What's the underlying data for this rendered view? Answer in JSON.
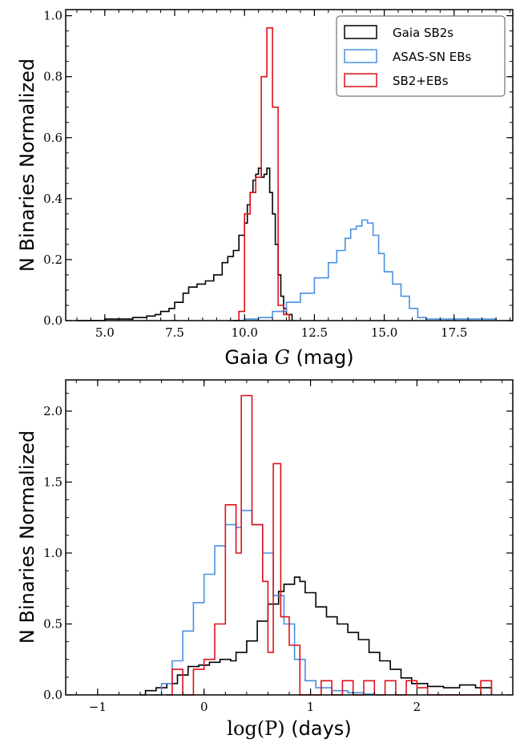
{
  "chart_data": [
    {
      "type": "histogram-step",
      "xlabel": "Gaia G (mag)",
      "xlabel_parts": {
        "pre": "Gaia ",
        "math": "G",
        "post": " (mag)"
      },
      "ylabel": "N Binaries Normalized",
      "xlim": [
        3.6,
        19.6
      ],
      "ylim": [
        0,
        1.02
      ],
      "xticks": [
        5.0,
        7.5,
        10.0,
        12.5,
        15.0,
        17.5
      ],
      "xtick_labels": [
        "5.0",
        "7.5",
        "10.0",
        "12.5",
        "15.0",
        "17.5"
      ],
      "yticks": [
        0.0,
        0.2,
        0.4,
        0.6,
        0.8,
        1.0
      ],
      "ytick_labels": [
        "0.0",
        "0.2",
        "0.4",
        "0.6",
        "0.8",
        "1.0"
      ],
      "legend": {
        "position": "top-right"
      },
      "series": [
        {
          "name": "Gaia SB2s",
          "color": "#000000",
          "points": [
            [
              4.0,
              0.0
            ],
            [
              5.0,
              0.005
            ],
            [
              6.0,
              0.01
            ],
            [
              6.5,
              0.015
            ],
            [
              6.8,
              0.02
            ],
            [
              7.0,
              0.03
            ],
            [
              7.3,
              0.04
            ],
            [
              7.5,
              0.06
            ],
            [
              7.8,
              0.09
            ],
            [
              8.0,
              0.11
            ],
            [
              8.3,
              0.12
            ],
            [
              8.6,
              0.13
            ],
            [
              8.9,
              0.15
            ],
            [
              9.2,
              0.19
            ],
            [
              9.4,
              0.21
            ],
            [
              9.6,
              0.23
            ],
            [
              9.8,
              0.28
            ],
            [
              10.0,
              0.32
            ],
            [
              10.1,
              0.38
            ],
            [
              10.2,
              0.42
            ],
            [
              10.3,
              0.46
            ],
            [
              10.4,
              0.48
            ],
            [
              10.5,
              0.5
            ],
            [
              10.6,
              0.47
            ],
            [
              10.7,
              0.48
            ],
            [
              10.8,
              0.5
            ],
            [
              10.9,
              0.42
            ],
            [
              11.0,
              0.35
            ],
            [
              11.1,
              0.25
            ],
            [
              11.2,
              0.15
            ],
            [
              11.3,
              0.08
            ],
            [
              11.4,
              0.04
            ],
            [
              11.5,
              0.02
            ],
            [
              11.7,
              0.0
            ]
          ]
        },
        {
          "name": "ASAS-SN EBs",
          "color": "#4a90e2",
          "points": [
            [
              9.5,
              0.0
            ],
            [
              10.0,
              0.005
            ],
            [
              10.5,
              0.01
            ],
            [
              11.0,
              0.03
            ],
            [
              11.5,
              0.06
            ],
            [
              12.0,
              0.09
            ],
            [
              12.5,
              0.14
            ],
            [
              13.0,
              0.19
            ],
            [
              13.3,
              0.23
            ],
            [
              13.6,
              0.27
            ],
            [
              13.8,
              0.3
            ],
            [
              14.0,
              0.31
            ],
            [
              14.2,
              0.33
            ],
            [
              14.4,
              0.32
            ],
            [
              14.6,
              0.28
            ],
            [
              14.8,
              0.22
            ],
            [
              15.0,
              0.16
            ],
            [
              15.3,
              0.12
            ],
            [
              15.6,
              0.08
            ],
            [
              15.9,
              0.04
            ],
            [
              16.2,
              0.01
            ],
            [
              16.5,
              0.005
            ],
            [
              19.0,
              0.005
            ],
            [
              19.0,
              0.0
            ]
          ]
        },
        {
          "name": "SB2+EBs",
          "color": "#e0101a",
          "points": [
            [
              9.6,
              0.0
            ],
            [
              9.8,
              0.03
            ],
            [
              10.0,
              0.35
            ],
            [
              10.2,
              0.42
            ],
            [
              10.4,
              0.47
            ],
            [
              10.6,
              0.8
            ],
            [
              10.8,
              0.96
            ],
            [
              11.0,
              0.7
            ],
            [
              11.2,
              0.05
            ],
            [
              11.4,
              0.02
            ],
            [
              11.6,
              0.0
            ]
          ]
        }
      ]
    },
    {
      "type": "histogram-step",
      "xlabel": "log(P) (days)",
      "xlabel_parts": {
        "pre": "",
        "math": "log(P)",
        "post": " (days)"
      },
      "ylabel": "N Binaries Normalized",
      "xlim": [
        -1.3,
        2.9
      ],
      "ylim": [
        0,
        2.22
      ],
      "xticks": [
        -1,
        0,
        1,
        2
      ],
      "xtick_labels": [
        "−1",
        "0",
        "1",
        "2"
      ],
      "yticks": [
        0.0,
        0.5,
        1.0,
        1.5,
        2.0
      ],
      "ytick_labels": [
        "0.0",
        "0.5",
        "1.0",
        "1.5",
        "2.0"
      ],
      "series": [
        {
          "name": "Gaia SB2s",
          "color": "#000000",
          "points": [
            [
              -0.6,
              0.0
            ],
            [
              -0.55,
              0.03
            ],
            [
              -0.45,
              0.05
            ],
            [
              -0.35,
              0.08
            ],
            [
              -0.25,
              0.14
            ],
            [
              -0.15,
              0.2
            ],
            [
              -0.05,
              0.21
            ],
            [
              0.05,
              0.23
            ],
            [
              0.15,
              0.25
            ],
            [
              0.25,
              0.24
            ],
            [
              0.3,
              0.3
            ],
            [
              0.4,
              0.38
            ],
            [
              0.5,
              0.52
            ],
            [
              0.6,
              0.64
            ],
            [
              0.7,
              0.73
            ],
            [
              0.75,
              0.78
            ],
            [
              0.85,
              0.83
            ],
            [
              0.9,
              0.8
            ],
            [
              0.95,
              0.72
            ],
            [
              1.05,
              0.62
            ],
            [
              1.15,
              0.55
            ],
            [
              1.25,
              0.5
            ],
            [
              1.35,
              0.44
            ],
            [
              1.45,
              0.39
            ],
            [
              1.55,
              0.3
            ],
            [
              1.65,
              0.24
            ],
            [
              1.75,
              0.18
            ],
            [
              1.85,
              0.12
            ],
            [
              1.95,
              0.08
            ],
            [
              2.1,
              0.06
            ],
            [
              2.25,
              0.05
            ],
            [
              2.4,
              0.07
            ],
            [
              2.55,
              0.05
            ],
            [
              2.7,
              0.0
            ]
          ]
        },
        {
          "name": "ASAS-SN EBs",
          "color": "#4a90e2",
          "points": [
            [
              -0.5,
              0.0
            ],
            [
              -0.4,
              0.08
            ],
            [
              -0.3,
              0.24
            ],
            [
              -0.2,
              0.45
            ],
            [
              -0.1,
              0.65
            ],
            [
              0.0,
              0.85
            ],
            [
              0.1,
              1.05
            ],
            [
              0.2,
              1.2
            ],
            [
              0.3,
              1.18
            ],
            [
              0.35,
              1.3
            ],
            [
              0.45,
              1.2
            ],
            [
              0.55,
              1.0
            ],
            [
              0.65,
              0.7
            ],
            [
              0.75,
              0.5
            ],
            [
              0.85,
              0.25
            ],
            [
              0.95,
              0.1
            ],
            [
              1.05,
              0.05
            ],
            [
              1.2,
              0.03
            ],
            [
              1.35,
              0.015
            ],
            [
              1.5,
              0.005
            ],
            [
              1.6,
              0.0
            ]
          ]
        },
        {
          "name": "SB2+EBs",
          "color": "#e0101a",
          "points": [
            [
              -0.35,
              0.0
            ],
            [
              -0.3,
              0.18
            ],
            [
              -0.2,
              0.0
            ],
            [
              -0.1,
              0.18
            ],
            [
              0.0,
              0.25
            ],
            [
              0.1,
              0.5
            ],
            [
              0.2,
              1.34
            ],
            [
              0.3,
              1.0
            ],
            [
              0.35,
              2.11
            ],
            [
              0.45,
              1.2
            ],
            [
              0.55,
              0.8
            ],
            [
              0.6,
              0.3
            ],
            [
              0.65,
              1.63
            ],
            [
              0.72,
              0.55
            ],
            [
              0.8,
              0.35
            ],
            [
              0.9,
              0.0
            ],
            [
              1.1,
              0.1
            ],
            [
              1.2,
              0.0
            ],
            [
              1.3,
              0.1
            ],
            [
              1.4,
              0.0
            ],
            [
              1.5,
              0.1
            ],
            [
              1.6,
              0.0
            ],
            [
              1.7,
              0.1
            ],
            [
              1.8,
              0.0
            ],
            [
              1.9,
              0.1
            ],
            [
              2.0,
              0.05
            ],
            [
              2.1,
              0.0
            ],
            [
              2.6,
              0.1
            ],
            [
              2.7,
              0.0
            ]
          ]
        }
      ]
    }
  ]
}
